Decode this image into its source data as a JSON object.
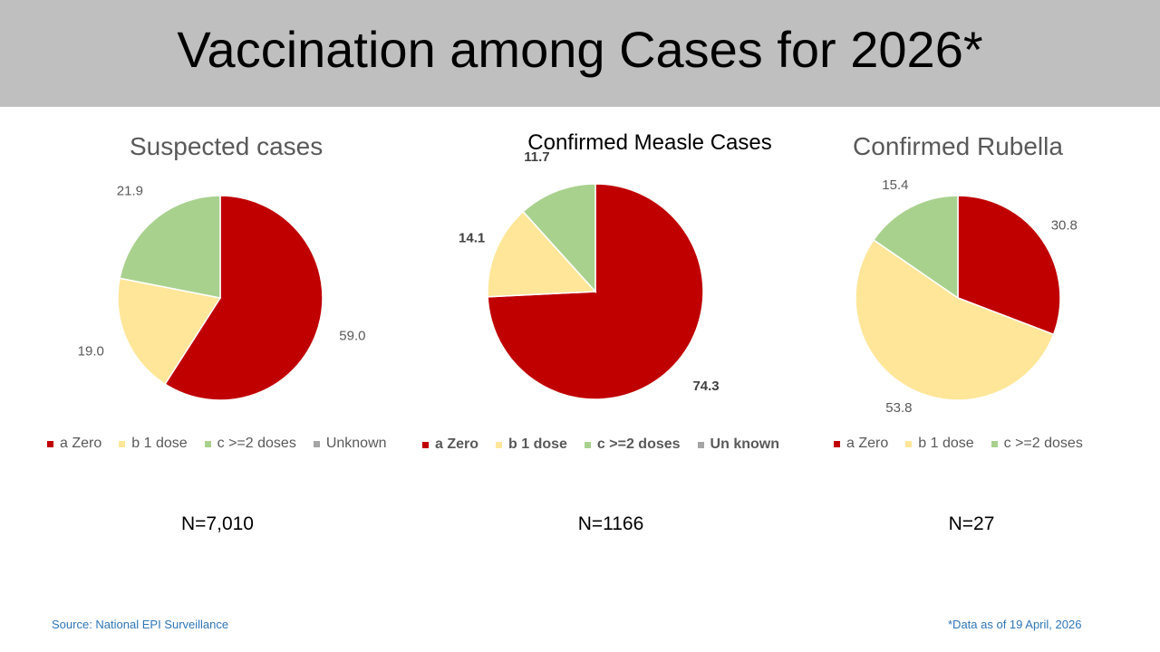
{
  "title": "Vaccination among Cases for 2026*",
  "colors": {
    "zero": "#c00000",
    "one_dose": "#ffe699",
    "two_plus_doses": "#a9d18e",
    "unknown": "#a5a5a5",
    "footer": "#2e75b6"
  },
  "chart_data": [
    {
      "type": "pie",
      "title": "Suspected cases",
      "slices": [
        {
          "label": "a Zero",
          "value": 59.0
        },
        {
          "label": "b 1 dose",
          "value": 19.0
        },
        {
          "label": "c >=2 doses",
          "value": 21.9
        },
        {
          "label": "Unknown",
          "value": 0
        }
      ],
      "data_labels": [
        "59.0",
        "19.0",
        "21.9"
      ],
      "legend": [
        "a Zero",
        "b 1 dose",
        "c >=2 doses",
        "Unknown"
      ],
      "legend_position": "bottom",
      "n_label": "N=7,010"
    },
    {
      "type": "pie",
      "title": "Confirmed Measle Cases",
      "slices": [
        {
          "label": "a Zero",
          "value": 74.3
        },
        {
          "label": "b 1 dose",
          "value": 14.1
        },
        {
          "label": "c >=2 doses",
          "value": 11.7
        },
        {
          "label": "Un known",
          "value": 0
        }
      ],
      "data_labels": [
        "74.3",
        "14.1",
        "11.7"
      ],
      "legend": [
        "a Zero",
        "b 1 dose",
        "c >=2 doses",
        "Un known"
      ],
      "legend_position": "bottom",
      "n_label": "N=1166"
    },
    {
      "type": "pie",
      "title": "Confirmed Rubella",
      "slices": [
        {
          "label": "a Zero",
          "value": 30.8
        },
        {
          "label": "b 1 dose",
          "value": 53.8
        },
        {
          "label": "c >=2 doses",
          "value": 15.4
        }
      ],
      "data_labels": [
        "30.8",
        "53.8",
        "15.4"
      ],
      "legend": [
        "a Zero",
        "b 1 dose",
        "c >=2 doses"
      ],
      "legend_position": "bottom",
      "n_label": "N=27"
    }
  ],
  "footer": {
    "source": "Source: National EPI Surveillance",
    "data_as_of": "*Data as of 19 April, 2026"
  }
}
